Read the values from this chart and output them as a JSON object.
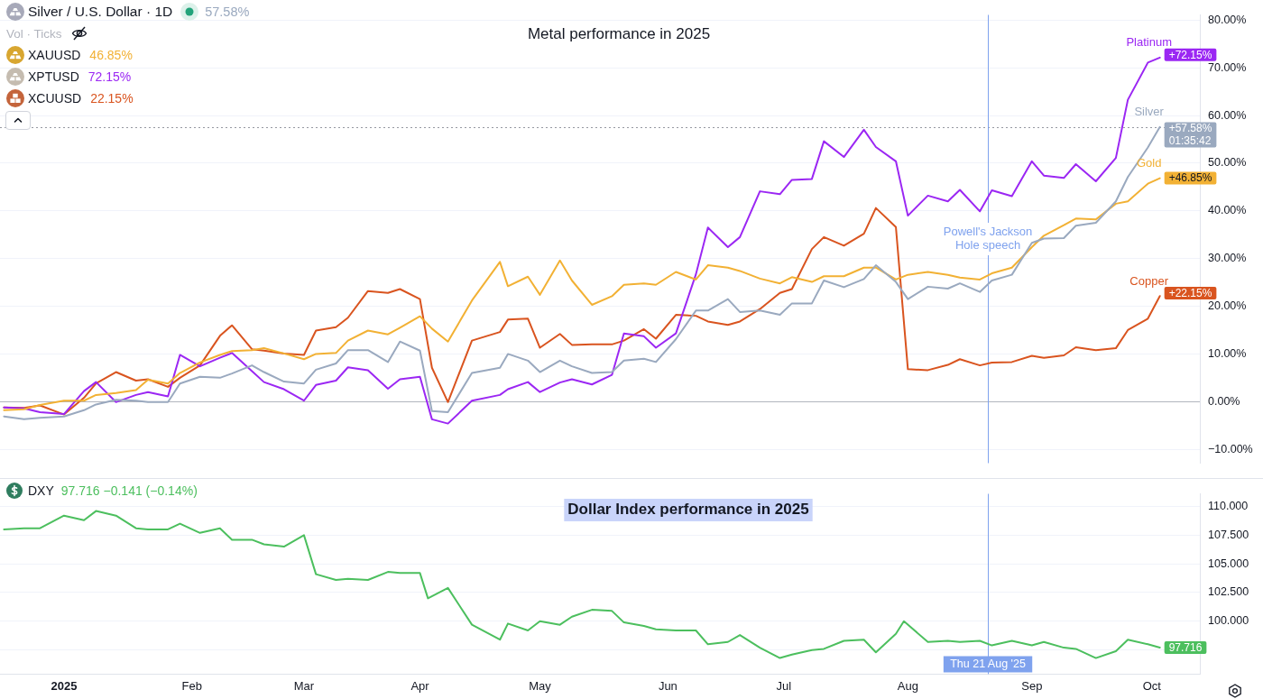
{
  "chart_data": [
    {
      "type": "line",
      "title": "Metal performance in 2025",
      "x": [
        "2024-12-18",
        "2024-12-23",
        "2024-12-27",
        "2025-01-02",
        "2025-01-07",
        "2025-01-10",
        "2025-01-15",
        "2025-01-20",
        "2025-01-23",
        "2025-01-28",
        "2025-01-31",
        "2025-02-05",
        "2025-02-10",
        "2025-02-13",
        "2025-02-18",
        "2025-02-21",
        "2025-02-26",
        "2025-03-03",
        "2025-03-06",
        "2025-03-11",
        "2025-03-14",
        "2025-03-19",
        "2025-03-24",
        "2025-03-27",
        "2025-04-01",
        "2025-04-04",
        "2025-04-08",
        "2025-04-14",
        "2025-04-21",
        "2025-04-23",
        "2025-04-28",
        "2025-05-01",
        "2025-05-06",
        "2025-05-09",
        "2025-05-14",
        "2025-05-19",
        "2025-05-22",
        "2025-05-27",
        "2025-05-30",
        "2025-06-04",
        "2025-06-09",
        "2025-06-12",
        "2025-06-17",
        "2025-06-20",
        "2025-06-25",
        "2025-06-30",
        "2025-07-03",
        "2025-07-08",
        "2025-07-11",
        "2025-07-16",
        "2025-07-21",
        "2025-07-24",
        "2025-07-29",
        "2025-08-01",
        "2025-08-06",
        "2025-08-11",
        "2025-08-14",
        "2025-08-19",
        "2025-08-22",
        "2025-08-27",
        "2025-09-01",
        "2025-09-04",
        "2025-09-09",
        "2025-09-12",
        "2025-09-17",
        "2025-09-22",
        "2025-09-25",
        "2025-09-30",
        "2025-10-03"
      ],
      "xlim": [
        "2024-12-17",
        "2025-10-13"
      ],
      "ylim": [
        -12.9,
        81.1
      ],
      "yticks": [
        {
          "value": -10,
          "label": "−10.00%"
        },
        {
          "value": 0,
          "label": "0.00%"
        },
        {
          "value": 10,
          "label": "10.00%"
        },
        {
          "value": 20,
          "label": "20.00%"
        },
        {
          "value": 30,
          "label": "30.00%"
        },
        {
          "value": 40,
          "label": "40.00%"
        },
        {
          "value": 50,
          "label": "50.00%"
        },
        {
          "value": 60,
          "label": "60.00%"
        },
        {
          "value": 70,
          "label": "70.00%"
        },
        {
          "value": 80,
          "label": "80.00%"
        }
      ],
      "tick_labels": "y",
      "grid": "y",
      "series": [
        {
          "name": "Silver",
          "color": "#9aa9bf",
          "values": [
            -3.1,
            -3.7,
            -3.4,
            -3.1,
            -1.8,
            -0.6,
            0.4,
            0.2,
            -0.1,
            -0.1,
            3.8,
            5.2,
            5.0,
            5.9,
            7.6,
            6.2,
            4.2,
            3.8,
            6.7,
            8.0,
            10.8,
            10.8,
            8.3,
            12.6,
            10.7,
            -2.0,
            -2.2,
            6.0,
            7.1,
            10.0,
            8.6,
            6.2,
            8.6,
            7.4,
            6.0,
            6.2,
            8.6,
            9.0,
            8.3,
            13.1,
            19.1,
            19.1,
            21.5,
            18.8,
            19.1,
            18.2,
            20.6,
            20.6,
            25.4,
            24.0,
            25.7,
            28.6,
            25.1,
            21.5,
            24.1,
            23.7,
            24.8,
            23.0,
            25.4,
            26.6,
            33.3,
            34.2,
            34.3,
            36.9,
            37.5,
            42.0,
            47.1,
            53.3,
            57.58
          ],
          "value_labels": [
            null,
            null,
            null,
            null,
            null,
            null,
            null,
            null,
            null,
            null,
            null,
            null,
            null,
            null,
            null,
            null,
            null,
            null,
            null,
            null,
            null,
            null,
            null,
            null,
            null,
            null,
            null,
            null,
            null,
            null,
            null,
            null,
            null,
            null,
            null,
            null,
            null,
            null,
            null,
            null,
            null,
            null,
            null,
            null,
            null,
            null,
            null,
            null,
            null,
            null,
            null,
            null,
            null,
            null,
            null,
            null,
            null,
            null,
            null,
            null,
            null,
            null,
            null,
            null,
            null,
            null,
            null,
            null,
            "+57.58%\n01:35:42"
          ]
        },
        {
          "name": "Gold",
          "color": "#f2b134",
          "values": [
            -1.8,
            -1.6,
            -0.7,
            0.2,
            0.2,
            1.4,
            1.8,
            2.4,
            4.6,
            3.8,
            6.0,
            8.2,
            9.8,
            10.6,
            10.8,
            11.2,
            10.1,
            8.9,
            10.0,
            10.2,
            12.8,
            14.9,
            14.1,
            15.5,
            17.9,
            15.3,
            12.6,
            21.2,
            29.3,
            24.2,
            26.2,
            22.4,
            29.6,
            25.4,
            20.3,
            22.1,
            24.5,
            24.8,
            24.5,
            27.2,
            25.6,
            28.6,
            28.1,
            27.4,
            25.8,
            24.8,
            26.1,
            25.1,
            26.3,
            26.3,
            28.1,
            28.1,
            25.6,
            26.6,
            27.2,
            26.6,
            26.0,
            25.6,
            26.9,
            28.1,
            32.4,
            34.8,
            37.0,
            38.4,
            38.2,
            41.5,
            42.0,
            45.7,
            46.85
          ],
          "value_labels": [
            null,
            null,
            null,
            null,
            null,
            null,
            null,
            null,
            null,
            null,
            null,
            null,
            null,
            null,
            null,
            null,
            null,
            null,
            null,
            null,
            null,
            null,
            null,
            null,
            null,
            null,
            null,
            null,
            null,
            null,
            null,
            null,
            null,
            null,
            null,
            null,
            null,
            null,
            null,
            null,
            null,
            null,
            null,
            null,
            null,
            null,
            null,
            null,
            null,
            null,
            null,
            null,
            null,
            null,
            null,
            null,
            null,
            null,
            null,
            null,
            null,
            null,
            null,
            null,
            null,
            null,
            null,
            null,
            "+46.85%"
          ]
        },
        {
          "name": "Platinum",
          "color": "#9b27f3",
          "values": [
            -1.2,
            -1.4,
            -2.2,
            -2.6,
            2.2,
            4.1,
            -0.1,
            1.4,
            2.0,
            1.1,
            9.8,
            7.4,
            9.2,
            10.2,
            6.4,
            4.1,
            2.6,
            0.2,
            3.5,
            4.4,
            7.2,
            6.6,
            2.7,
            4.7,
            5.2,
            -3.7,
            -4.6,
            0.2,
            1.4,
            2.6,
            4.1,
            2.0,
            4.0,
            4.7,
            3.6,
            5.6,
            14.3,
            13.7,
            11.3,
            14.3,
            26.7,
            36.5,
            32.4,
            34.5,
            44.1,
            43.5,
            46.5,
            46.7,
            54.6,
            51.3,
            57.0,
            53.4,
            50.4,
            39.0,
            43.2,
            42.0,
            44.4,
            39.9,
            44.3,
            43.1,
            50.4,
            47.4,
            46.9,
            49.8,
            46.2,
            51.1,
            63.3,
            71.1,
            72.15
          ],
          "value_labels": [
            null,
            null,
            null,
            null,
            null,
            null,
            null,
            null,
            null,
            null,
            null,
            null,
            null,
            null,
            null,
            null,
            null,
            null,
            null,
            null,
            null,
            null,
            null,
            null,
            null,
            null,
            null,
            null,
            null,
            null,
            null,
            null,
            null,
            null,
            null,
            null,
            null,
            null,
            null,
            null,
            null,
            null,
            null,
            null,
            null,
            null,
            null,
            null,
            null,
            null,
            null,
            null,
            null,
            null,
            null,
            null,
            null,
            null,
            null,
            null,
            null,
            null,
            null,
            null,
            null,
            null,
            null,
            null,
            "+72.15%"
          ]
        },
        {
          "name": "Copper",
          "color": "#d9541f",
          "values": [
            -1.2,
            -1.3,
            -0.8,
            -2.7,
            0.8,
            3.8,
            6.2,
            4.4,
            4.7,
            3.1,
            5.0,
            7.6,
            13.8,
            16.0,
            11.0,
            10.7,
            10.1,
            9.8,
            14.9,
            15.6,
            17.6,
            23.2,
            22.8,
            23.6,
            21.5,
            7.1,
            -0.1,
            12.8,
            14.6,
            17.2,
            17.4,
            11.3,
            14.2,
            11.9,
            12.0,
            12.0,
            12.8,
            15.2,
            13.2,
            18.2,
            18.0,
            16.8,
            16.1,
            16.8,
            19.4,
            22.8,
            23.6,
            32.0,
            34.5,
            32.7,
            35.2,
            40.6,
            36.6,
            6.8,
            6.6,
            7.7,
            8.9,
            7.6,
            8.2,
            8.3,
            9.6,
            9.2,
            9.7,
            11.4,
            10.8,
            11.2,
            15.0,
            17.4,
            22.15
          ],
          "value_labels": [
            null,
            null,
            null,
            null,
            null,
            null,
            null,
            null,
            null,
            null,
            null,
            null,
            null,
            null,
            null,
            null,
            null,
            null,
            null,
            null,
            null,
            null,
            null,
            null,
            null,
            null,
            null,
            null,
            null,
            null,
            null,
            null,
            null,
            null,
            null,
            null,
            null,
            null,
            null,
            null,
            null,
            null,
            null,
            null,
            null,
            null,
            null,
            null,
            null,
            null,
            null,
            null,
            null,
            null,
            null,
            null,
            null,
            null,
            null,
            null,
            null,
            null,
            null,
            null,
            null,
            null,
            null,
            null,
            "+22.15%"
          ]
        }
      ],
      "annotations": [
        "Silver / U.S. Dollar · 1D",
        "57.58%",
        "Vol · Ticks",
        "XAUUSD",
        "46.85%",
        "XPTUSD",
        "72.15%",
        "XCUUSD",
        "22.15%"
      ],
      "ref_lines": [
        {
          "axis": "y",
          "value": 0,
          "color": "#b2b5be"
        },
        {
          "axis": "y",
          "value": 57.58,
          "color": "#9598a1",
          "line_style": "dotted"
        },
        {
          "axis": "x",
          "value": "2025-08-21",
          "label": "Powell's Jackson Hole speech",
          "color": "#7fa2ee"
        }
      ]
    },
    {
      "type": "line",
      "title": "Dollar Index performance in 2025",
      "x": [
        "2024-12-18",
        "2024-12-23",
        "2024-12-27",
        "2025-01-02",
        "2025-01-07",
        "2025-01-10",
        "2025-01-15",
        "2025-01-20",
        "2025-01-23",
        "2025-01-28",
        "2025-01-31",
        "2025-02-05",
        "2025-02-10",
        "2025-02-13",
        "2025-02-18",
        "2025-02-21",
        "2025-02-26",
        "2025-03-03",
        "2025-03-06",
        "2025-03-11",
        "2025-03-14",
        "2025-03-19",
        "2025-03-24",
        "2025-03-27",
        "2025-04-01",
        "2025-04-03",
        "2025-04-08",
        "2025-04-14",
        "2025-04-21",
        "2025-04-23",
        "2025-04-28",
        "2025-05-01",
        "2025-05-06",
        "2025-05-09",
        "2025-05-14",
        "2025-05-19",
        "2025-05-22",
        "2025-05-27",
        "2025-05-30",
        "2025-06-04",
        "2025-06-09",
        "2025-06-12",
        "2025-06-17",
        "2025-06-20",
        "2025-06-25",
        "2025-06-30",
        "2025-07-03",
        "2025-07-08",
        "2025-07-11",
        "2025-07-16",
        "2025-07-21",
        "2025-07-24",
        "2025-07-29",
        "2025-07-31",
        "2025-08-06",
        "2025-08-11",
        "2025-08-14",
        "2025-08-19",
        "2025-08-22",
        "2025-08-27",
        "2025-09-01",
        "2025-09-04",
        "2025-09-09",
        "2025-09-12",
        "2025-09-17",
        "2025-09-22",
        "2025-09-25",
        "2025-09-30",
        "2025-10-03"
      ],
      "xlim": [
        "2024-12-17",
        "2025-10-13"
      ],
      "xticks": [
        {
          "value": "2025-01-02",
          "label": "2025"
        },
        {
          "value": "2025-02-03",
          "label": "Feb"
        },
        {
          "value": "2025-03-03",
          "label": "Mar"
        },
        {
          "value": "2025-04-01",
          "label": "Apr"
        },
        {
          "value": "2025-05-01",
          "label": "May"
        },
        {
          "value": "2025-06-02",
          "label": "Jun"
        },
        {
          "value": "2025-07-01",
          "label": "Jul"
        },
        {
          "value": "2025-08-01",
          "label": "Aug"
        },
        {
          "value": "2025-09-01",
          "label": "Sep"
        },
        {
          "value": "2025-10-01",
          "label": "Oct"
        }
      ],
      "ylim": [
        95.4,
        111.1
      ],
      "yticks": [
        {
          "value": 97.5,
          "label": null
        },
        {
          "value": 100,
          "label": "100.000"
        },
        {
          "value": 102.5,
          "label": "102.500"
        },
        {
          "value": 105,
          "label": "105.000"
        },
        {
          "value": 107.5,
          "label": "107.500"
        },
        {
          "value": 110,
          "label": "110.000"
        }
      ],
      "grid": "y",
      "series": [
        {
          "color": "#4cbf5e",
          "values": [
            108.0,
            108.1,
            108.1,
            109.2,
            108.8,
            109.6,
            109.2,
            108.1,
            108.0,
            108.0,
            108.5,
            107.7,
            108.1,
            107.1,
            107.1,
            106.7,
            106.5,
            107.5,
            104.1,
            103.6,
            103.7,
            103.6,
            104.3,
            104.2,
            104.2,
            102.0,
            102.9,
            99.7,
            98.4,
            99.8,
            99.2,
            100.0,
            99.7,
            100.4,
            101.0,
            100.9,
            99.9,
            99.6,
            99.3,
            99.2,
            99.2,
            98.0,
            98.2,
            98.8,
            97.7,
            96.8,
            97.1,
            97.5,
            97.6,
            98.3,
            98.4,
            97.3,
            98.9,
            100.0,
            98.2,
            98.3,
            98.2,
            98.3,
            97.9,
            98.3,
            97.9,
            98.2,
            97.7,
            97.6,
            96.8,
            97.4,
            98.4,
            98.0,
            97.716
          ],
          "value_labels": [
            null,
            null,
            null,
            null,
            null,
            null,
            null,
            null,
            null,
            null,
            null,
            null,
            null,
            null,
            null,
            null,
            null,
            null,
            null,
            null,
            null,
            null,
            null,
            null,
            null,
            null,
            null,
            null,
            null,
            null,
            null,
            null,
            null,
            null,
            null,
            null,
            null,
            null,
            null,
            null,
            null,
            null,
            null,
            null,
            null,
            null,
            null,
            null,
            null,
            null,
            null,
            null,
            null,
            null,
            null,
            null,
            null,
            null,
            null,
            null,
            null,
            null,
            null,
            null,
            null,
            null,
            null,
            null,
            "97.716"
          ]
        }
      ],
      "annotations": [
        "DXY",
        "97.716 −0.141 (−0.14%)"
      ],
      "ref_lines": [
        {
          "axis": "x",
          "value": "2025-08-21",
          "label": "Thu 21 Aug '25",
          "color": "#7fa2ee"
        }
      ]
    }
  ]
}
